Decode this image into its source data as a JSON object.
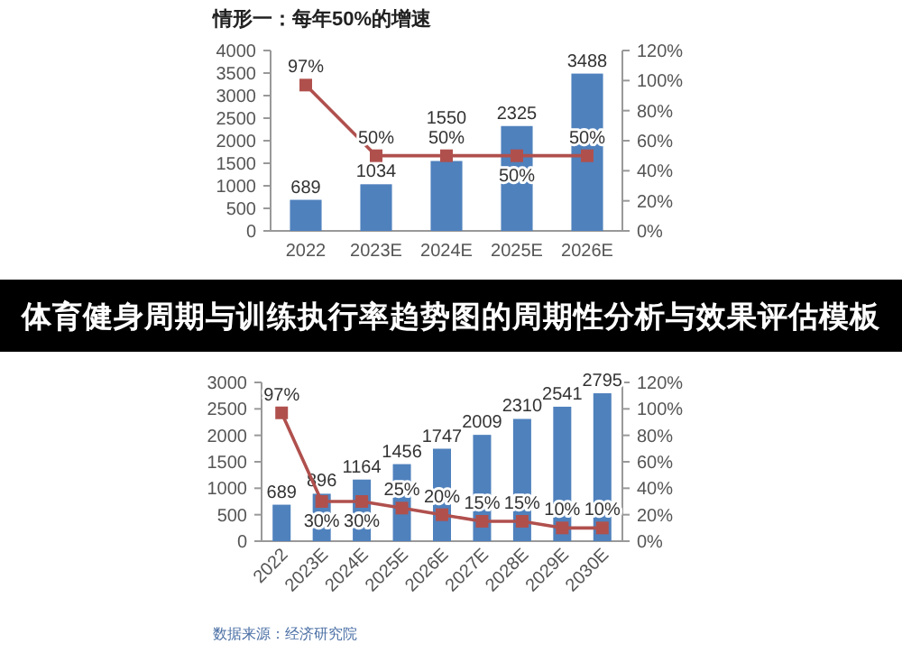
{
  "chart_data": [
    {
      "type": "bar",
      "title": "情形一：每年50%的增速",
      "categories": [
        "2022",
        "2023E",
        "2024E",
        "2025E",
        "2026E"
      ],
      "series": [
        {
          "color": "#4f81bd",
          "values": [
            689,
            1034,
            1550,
            2325,
            3488
          ],
          "data_labels": true
        },
        {
          "type": "line",
          "axis": "y2",
          "color": "#b0504d",
          "marker": "square",
          "values": [
            97,
            50,
            50,
            50,
            50
          ],
          "value_labels": [
            "97%",
            "50%",
            "50%",
            "50%",
            "50%"
          ]
        }
      ],
      "ylim": [
        0,
        4000
      ],
      "yticks": [
        0,
        500,
        1000,
        1500,
        2000,
        2500,
        3000,
        3500,
        4000
      ],
      "y2lim": [
        0,
        120
      ],
      "y2ticks": [
        {
          "value": 0,
          "label": "0%"
        },
        {
          "value": 20,
          "label": "20%"
        },
        {
          "value": 40,
          "label": "40%"
        },
        {
          "value": 60,
          "label": "60%"
        },
        {
          "value": 80,
          "label": "80%"
        },
        {
          "value": 100,
          "label": "100%"
        },
        {
          "value": 120,
          "label": "120%"
        }
      ],
      "grid": false
    },
    {
      "type": "bar",
      "categories": [
        "2022",
        "2023E",
        "2024E",
        "2025E",
        "2026E",
        "2027E",
        "2028E",
        "2029E",
        "2030E"
      ],
      "series": [
        {
          "color": "#4f81bd",
          "values": [
            689,
            896,
            1164,
            1456,
            1747,
            2009,
            2310,
            2541,
            2795
          ],
          "data_labels": true
        },
        {
          "type": "line",
          "axis": "y2",
          "color": "#b0504d",
          "marker": "square",
          "values": [
            97,
            30,
            30,
            25,
            20,
            15,
            15,
            10,
            10
          ],
          "value_labels": [
            "97%",
            "30%",
            "30%",
            "25%",
            "20%",
            "15%",
            "15%",
            "10%",
            "10%"
          ]
        }
      ],
      "ylim": [
        0,
        3000
      ],
      "yticks": [
        0,
        500,
        1000,
        1500,
        2000,
        2500,
        3000
      ],
      "y2lim": [
        0,
        120
      ],
      "y2ticks": [
        {
          "value": 0,
          "label": "0%"
        },
        {
          "value": 20,
          "label": "20%"
        },
        {
          "value": 40,
          "label": "40%"
        },
        {
          "value": 60,
          "label": "60%"
        },
        {
          "value": 80,
          "label": "80%"
        },
        {
          "value": 100,
          "label": "100%"
        },
        {
          "value": 120,
          "label": "120%"
        }
      ],
      "grid": false,
      "annotations": [
        "体育健身周期与训练执行率趋势图的周期性分析与效果评估模板",
        "数据来源：经济研究院"
      ]
    }
  ]
}
